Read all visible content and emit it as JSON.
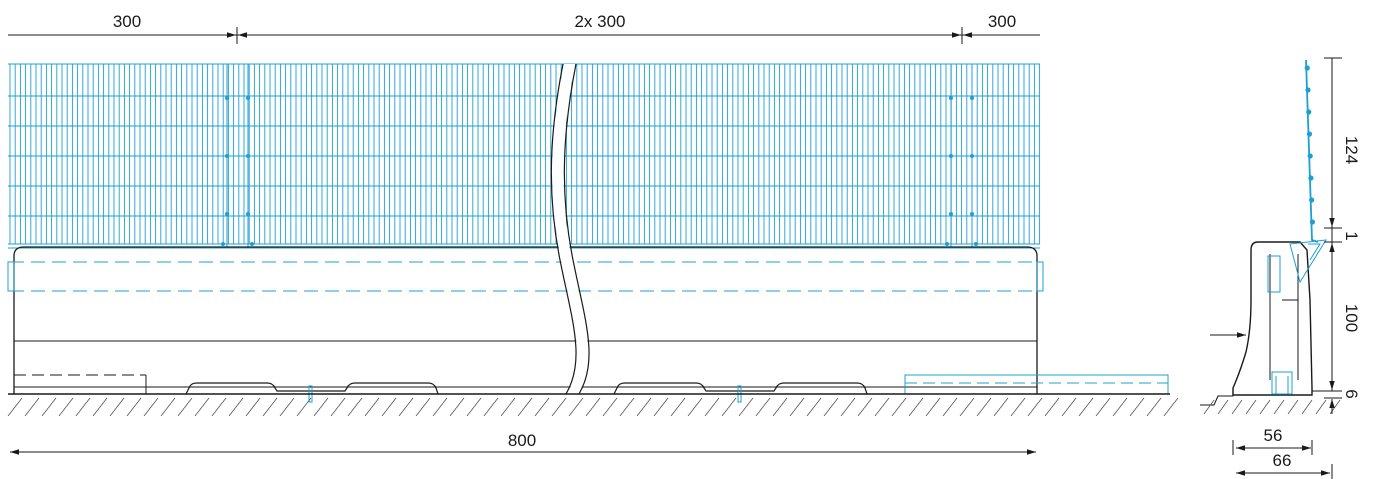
{
  "dimensions": {
    "top_left": "300",
    "top_middle": "2x 300",
    "top_right": "300",
    "bottom_overall": "800",
    "side_fence_height": "124",
    "side_gap": "1",
    "side_block_height": "100",
    "side_ground": "6",
    "side_width_upper": "56",
    "side_width_lower": "66"
  },
  "colors": {
    "fence": "#1c9fd4",
    "outline": "#1a1a1a"
  }
}
